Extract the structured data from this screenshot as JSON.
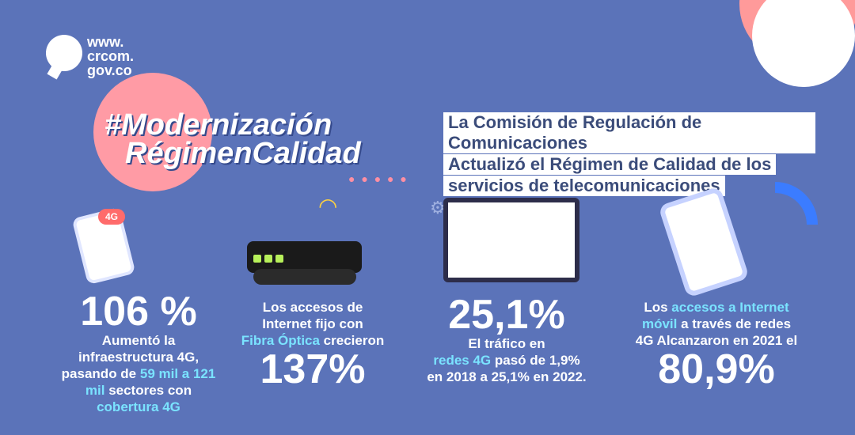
{
  "logo": {
    "line1": "www.",
    "line2": "crcom.",
    "line3": "gov.co"
  },
  "hashtag": {
    "line1": "#Modernización",
    "line2": "RégimenCalidad"
  },
  "headline": {
    "line1": "La Comisión de Regulación de Comunicaciones",
    "line2": "Actualizó el Régimen de Calidad de los",
    "line3": "servicios de telecomunicaciones"
  },
  "badge_4g": "4G",
  "stats": {
    "s1": {
      "big": "106 %",
      "t1": "Aumentó la",
      "t2": "infraestructura 4G,",
      "t3a": "pasando de ",
      "t3b": "59 mil a 121",
      "t4a": "mil",
      "t4b": " sectores con",
      "t5": "cobertura 4G"
    },
    "s2": {
      "t1": "Los accesos de",
      "t2": "Internet fijo con",
      "t3a": "Fibra Óptica",
      "t3b": " crecieron",
      "big": "137%"
    },
    "s3": {
      "big": "25,1%",
      "t1": "El tráfico en",
      "t2a": "redes 4G",
      "t2b": " pasó de 1,9%",
      "t3": "en 2018 a 25,1% en 2022."
    },
    "s4": {
      "t1a": "Los ",
      "t1b": "accesos a Internet",
      "t2a": "móvil",
      "t2b": " a través de redes",
      "t3": "4G Alcanzaron en 2021 el",
      "big": "80,9%"
    }
  },
  "icons": [
    "crc-logo-icon",
    "wifi-icon",
    "phone-icon",
    "router-icon",
    "dashboard-icon",
    "gear-icon",
    "smartphone-icon"
  ]
}
